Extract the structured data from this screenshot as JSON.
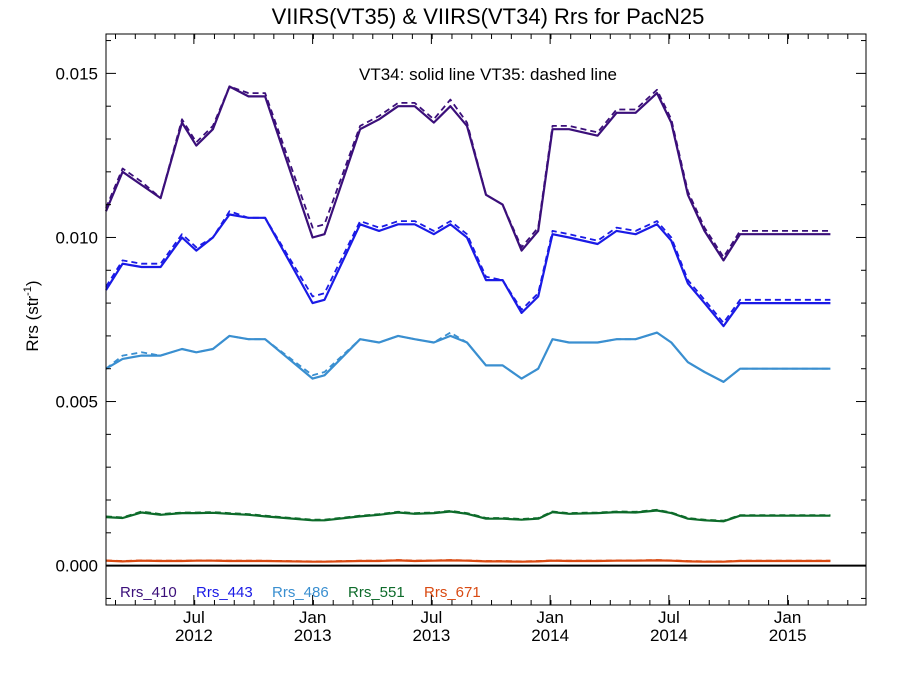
{
  "chart_data": {
    "type": "line",
    "title": "VIIRS(VT35) & VIIRS(VT34)  Rrs for PacN25",
    "ylabel_main": "Rrs (str",
    "ylabel_sup": "-1",
    "ylabel_close": ")",
    "annotation": "VT34: solid line   VT35: dashed line",
    "ylim": [
      -0.0012,
      0.0162
    ],
    "xlim": [
      2012.0,
      2015.2
    ],
    "yticks": [
      {
        "value": 0.0,
        "label": "0.000"
      },
      {
        "value": 0.005,
        "label": "0.005"
      },
      {
        "value": 0.01,
        "label": "0.010"
      },
      {
        "value": 0.015,
        "label": "0.015"
      }
    ],
    "xticks": [
      {
        "value": 2012.37,
        "month": "Jul",
        "year": "2012"
      },
      {
        "value": 2012.87,
        "month": "Jan",
        "year": "2013"
      },
      {
        "value": 2013.37,
        "month": "Jul",
        "year": "2013"
      },
      {
        "value": 2013.87,
        "month": "Jan",
        "year": "2014"
      },
      {
        "value": 2014.37,
        "month": "Jul",
        "year": "2014"
      },
      {
        "value": 2014.87,
        "month": "Jan",
        "year": "2015"
      }
    ],
    "grid": false,
    "legend_position": "bottom-left",
    "zero_line": true,
    "x": [
      2012.0,
      2012.07,
      2012.15,
      2012.23,
      2012.32,
      2012.38,
      2012.45,
      2012.52,
      2012.6,
      2012.67,
      2012.87,
      2012.92,
      2013.07,
      2013.15,
      2013.23,
      2013.3,
      2013.38,
      2013.45,
      2013.52,
      2013.6,
      2013.67,
      2013.75,
      2013.82,
      2013.88,
      2013.95,
      2014.07,
      2014.15,
      2014.23,
      2014.32,
      2014.38,
      2014.45,
      2014.52,
      2014.6,
      2014.67,
      2014.75,
      2014.82,
      2014.88,
      2014.95,
      2015.05
    ],
    "series": [
      {
        "name": "Rrs_410",
        "color": "#3b0f7a",
        "solid": [
          0.0108,
          0.012,
          0.0116,
          0.0112,
          0.0135,
          0.0128,
          0.0133,
          0.0146,
          0.0143,
          0.0143,
          0.01,
          0.0101,
          0.0133,
          0.0136,
          0.014,
          0.014,
          0.0135,
          0.014,
          0.0134,
          0.0113,
          0.011,
          0.0096,
          0.0102,
          0.0133,
          0.0133,
          0.0131,
          0.0138,
          0.0138,
          0.0144,
          0.0135,
          0.0113,
          0.0102,
          0.0093,
          0.0101,
          0.0101,
          0.0101,
          0.0101,
          0.0101,
          0.0101
        ],
        "dashed": [
          0.0109,
          0.0121,
          0.0117,
          0.0112,
          0.0136,
          0.0129,
          0.0134,
          0.0146,
          0.0144,
          0.0144,
          0.0103,
          0.0104,
          0.0134,
          0.0137,
          0.0141,
          0.0141,
          0.0136,
          0.0142,
          0.0135,
          0.0113,
          0.011,
          0.0097,
          0.0103,
          0.0134,
          0.0134,
          0.0132,
          0.0139,
          0.0139,
          0.0145,
          0.0136,
          0.0114,
          0.0103,
          0.0094,
          0.0102,
          0.0102,
          0.0102,
          0.0102,
          0.0102,
          0.0102
        ]
      },
      {
        "name": "Rrs_443",
        "color": "#1a1ae6",
        "solid": [
          0.0084,
          0.0092,
          0.0091,
          0.0091,
          0.01,
          0.0096,
          0.01,
          0.0107,
          0.0106,
          0.0106,
          0.008,
          0.0081,
          0.0104,
          0.0102,
          0.0104,
          0.0104,
          0.0101,
          0.0104,
          0.01,
          0.0087,
          0.0087,
          0.0077,
          0.0082,
          0.0101,
          0.01,
          0.0098,
          0.0102,
          0.0101,
          0.0104,
          0.0099,
          0.0086,
          0.008,
          0.0073,
          0.008,
          0.008,
          0.008,
          0.008,
          0.008,
          0.008
        ],
        "dashed": [
          0.0085,
          0.0093,
          0.0092,
          0.0092,
          0.0101,
          0.0097,
          0.01,
          0.0108,
          0.0106,
          0.0106,
          0.0082,
          0.0083,
          0.0105,
          0.0103,
          0.0105,
          0.0105,
          0.0102,
          0.0105,
          0.0101,
          0.0088,
          0.0087,
          0.0078,
          0.0083,
          0.0102,
          0.0101,
          0.0099,
          0.0103,
          0.0102,
          0.0105,
          0.01,
          0.0087,
          0.0081,
          0.0074,
          0.0081,
          0.0081,
          0.0081,
          0.0081,
          0.0081,
          0.0081
        ]
      },
      {
        "name": "Rrs_486",
        "color": "#3a8fd0",
        "solid": [
          0.006,
          0.0063,
          0.0064,
          0.0064,
          0.0066,
          0.0065,
          0.0066,
          0.007,
          0.0069,
          0.0069,
          0.0057,
          0.0058,
          0.0069,
          0.0068,
          0.007,
          0.0069,
          0.0068,
          0.007,
          0.0068,
          0.0061,
          0.0061,
          0.0057,
          0.006,
          0.0069,
          0.0068,
          0.0068,
          0.0069,
          0.0069,
          0.0071,
          0.0068,
          0.0062,
          0.0059,
          0.0056,
          0.006,
          0.006,
          0.006,
          0.006,
          0.006,
          0.006
        ],
        "dashed": [
          0.006,
          0.0064,
          0.0065,
          0.0064,
          0.0066,
          0.0065,
          0.0066,
          0.007,
          0.0069,
          0.0069,
          0.0058,
          0.0059,
          0.0069,
          0.0068,
          0.007,
          0.0069,
          0.0068,
          0.0071,
          0.0068,
          0.0061,
          0.0061,
          0.0057,
          0.006,
          0.0069,
          0.0068,
          0.0068,
          0.0069,
          0.0069,
          0.0071,
          0.0068,
          0.0062,
          0.0059,
          0.0056,
          0.006,
          0.006,
          0.006,
          0.006,
          0.006,
          0.006
        ]
      },
      {
        "name": "Rrs_551",
        "color": "#0d6b2a",
        "solid": [
          0.00148,
          0.00145,
          0.00162,
          0.00155,
          0.0016,
          0.0016,
          0.00161,
          0.00158,
          0.00155,
          0.0015,
          0.00138,
          0.00138,
          0.0015,
          0.00155,
          0.00162,
          0.00158,
          0.0016,
          0.00165,
          0.00158,
          0.00143,
          0.00143,
          0.0014,
          0.00143,
          0.00163,
          0.00158,
          0.0016,
          0.00163,
          0.00162,
          0.00168,
          0.0016,
          0.00143,
          0.00138,
          0.00135,
          0.00152,
          0.00152,
          0.00152,
          0.00152,
          0.00152,
          0.00152
        ],
        "dashed": [
          0.0015,
          0.00147,
          0.00165,
          0.00157,
          0.00162,
          0.00162,
          0.00163,
          0.0016,
          0.00157,
          0.00152,
          0.0014,
          0.0014,
          0.00152,
          0.00157,
          0.00164,
          0.0016,
          0.00162,
          0.00167,
          0.0016,
          0.00145,
          0.00145,
          0.00142,
          0.00145,
          0.00165,
          0.0016,
          0.00162,
          0.00165,
          0.00164,
          0.0017,
          0.00162,
          0.00145,
          0.0014,
          0.00137,
          0.00154,
          0.00154,
          0.00154,
          0.00154,
          0.00154,
          0.00154
        ]
      },
      {
        "name": "Rrs_671",
        "color": "#d94a12",
        "solid": [
          0.00015,
          0.00013,
          0.00015,
          0.00014,
          0.00014,
          0.00015,
          0.00015,
          0.00014,
          0.00014,
          0.00014,
          0.00012,
          0.00012,
          0.00014,
          0.00014,
          0.00016,
          0.00014,
          0.00015,
          0.00016,
          0.00015,
          0.00013,
          0.00013,
          0.00012,
          0.00013,
          0.00015,
          0.00014,
          0.00014,
          0.00015,
          0.00015,
          0.00016,
          0.00015,
          0.00013,
          0.00012,
          0.00012,
          0.00014,
          0.00014,
          0.00014,
          0.00014,
          0.00014,
          0.00014
        ],
        "dashed": [
          0.00016,
          0.00014,
          0.00016,
          0.00015,
          0.00015,
          0.00016,
          0.00016,
          0.00015,
          0.00015,
          0.00015,
          0.00013,
          0.00013,
          0.00015,
          0.00015,
          0.00017,
          0.00015,
          0.00016,
          0.00017,
          0.00016,
          0.00014,
          0.00014,
          0.00013,
          0.00014,
          0.00016,
          0.00015,
          0.00015,
          0.00016,
          0.00016,
          0.00017,
          0.00016,
          0.00014,
          0.00013,
          0.00013,
          0.00015,
          0.00015,
          0.00015,
          0.00015,
          0.00015,
          0.00015
        ]
      }
    ]
  }
}
